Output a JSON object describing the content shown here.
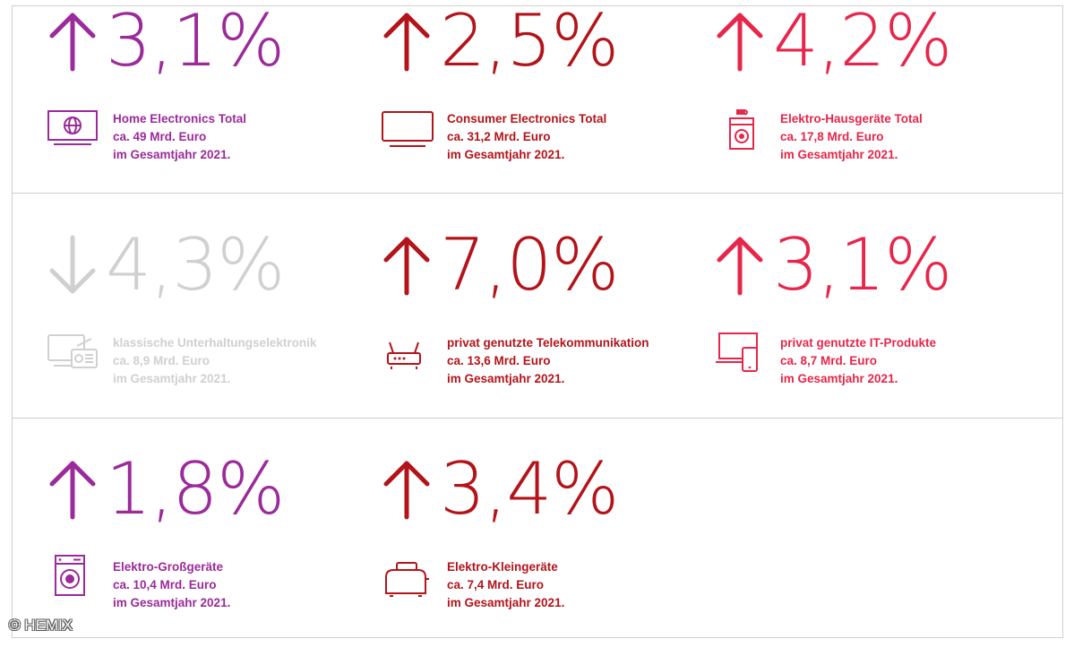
{
  "chart_data": {
    "type": "table",
    "title": "",
    "colors": {
      "purple": "#9b2a9a",
      "darkred": "#b3141a",
      "pink": "#e6264a",
      "grey": "#d0d0d0"
    },
    "items": [
      {
        "id": "home",
        "direction": "up",
        "change_label": "3,1%",
        "change_value": 3.1,
        "color": "#9b2a9a",
        "icon": "monitor-globe-icon",
        "title": "Home Electronics Total",
        "amount": "ca. 49 Mrd. Euro",
        "period": "im Gesamtjahr 2021."
      },
      {
        "id": "consumer",
        "direction": "up",
        "change_label": "2,5%",
        "change_value": 2.5,
        "color": "#b3141a",
        "icon": "tv-icon",
        "title": "Consumer Electronics Total",
        "amount": "ca. 31,2 Mrd. Euro",
        "period": "im Gesamtjahr 2021."
      },
      {
        "id": "hausgeraete",
        "direction": "up",
        "change_label": "4,2%",
        "change_value": 4.2,
        "color": "#e6264a",
        "icon": "washer-kettle-icon",
        "title": "Elektro-Hausgeräte Total",
        "amount": "ca. 17,8 Mrd. Euro",
        "period": "im Gesamtjahr 2021."
      },
      {
        "id": "klassisch",
        "direction": "down",
        "change_label": "4,3%",
        "change_value": -4.3,
        "color": "#d0d0d0",
        "icon": "tv-radio-icon",
        "title": "klassische Unterhaltungselektronik",
        "amount": "ca. 8,9 Mrd. Euro",
        "period": "im Gesamtjahr 2021."
      },
      {
        "id": "telekom",
        "direction": "up",
        "change_label": "7,0%",
        "change_value": 7.0,
        "color": "#b3141a",
        "icon": "router-icon",
        "title": "privat genutzte Telekommunikation",
        "amount": "ca. 13,6 Mrd. Euro",
        "period": "im Gesamtjahr 2021."
      },
      {
        "id": "it",
        "direction": "up",
        "change_label": "3,1%",
        "change_value": 3.1,
        "color": "#e6264a",
        "icon": "laptop-phone-icon",
        "title": "privat genutzte IT-Produkte",
        "amount": "ca. 8,7 Mrd. Euro",
        "period": "im Gesamtjahr 2021."
      },
      {
        "id": "gross",
        "direction": "up",
        "change_label": "1,8%",
        "change_value": 1.8,
        "color": "#9b2a9a",
        "icon": "washing-machine-icon",
        "title": "Elektro-Großgeräte",
        "amount": "ca. 10,4 Mrd. Euro",
        "period": "im Gesamtjahr 2021."
      },
      {
        "id": "klein",
        "direction": "up",
        "change_label": "3,4%",
        "change_value": 3.4,
        "color": "#b3141a",
        "icon": "toaster-icon",
        "title": "Elektro-Kleingeräte",
        "amount": "ca. 7,4 Mrd. Euro",
        "period": "im Gesamtjahr 2021."
      }
    ]
  },
  "credit": "© HEMIX"
}
